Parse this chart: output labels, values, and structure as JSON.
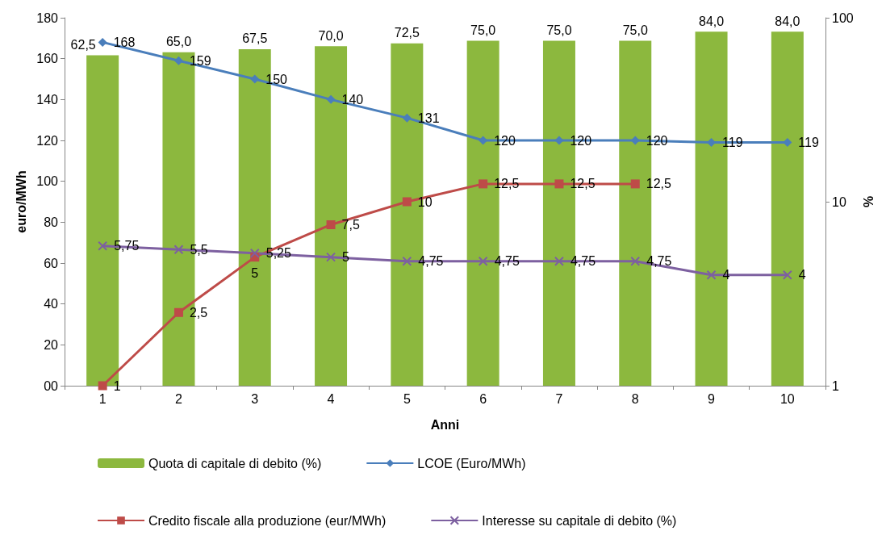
{
  "chart_data": {
    "type": "bar",
    "xlabel": "Anni",
    "ylabel": "euro/MWh",
    "y2label": "%",
    "categories": [
      "1",
      "2",
      "3",
      "4",
      "5",
      "6",
      "7",
      "8",
      "9",
      "10"
    ],
    "series": [
      {
        "name": "Quota di capitale di debito (%)",
        "axis": "y2",
        "color": "#8cb83e",
        "marker": "none",
        "values": [
          62.5,
          65.0,
          67.5,
          70.0,
          72.5,
          75.0,
          75.0,
          75.0,
          84.0,
          84.0
        ],
        "value_labels": [
          "62,5",
          "65,0",
          "67,5",
          "70,0",
          "72,5",
          "75,0",
          "75,0",
          "75,0",
          "84,0",
          "84,0"
        ]
      },
      {
        "name": "LCOE (Euro/MWh)",
        "type": "line",
        "color": "#4a7ebb",
        "marker": "diamond",
        "values": [
          168,
          159,
          150,
          140,
          131,
          120,
          120,
          120,
          119,
          119
        ],
        "value_labels": [
          "168",
          "159",
          "150",
          "140",
          "131",
          "120",
          "120",
          "120",
          "119",
          "119"
        ]
      },
      {
        "name": "Credito fiscale alla produzione (eur/MWh)",
        "type": "line",
        "axis": "y2",
        "color": "#be4b48",
        "marker": "square",
        "values": [
          1,
          2.5,
          5,
          7.5,
          10,
          12.5,
          12.5,
          12.5,
          null,
          null
        ],
        "value_labels": [
          "1",
          "2,5",
          "5",
          "7,5",
          "10",
          "12,5",
          "12,5",
          "12,5",
          null,
          null
        ]
      },
      {
        "name": "Interesse su capitale di debito (%)",
        "type": "line",
        "axis": "y2",
        "color": "#7d60a0",
        "marker": "cross",
        "values": [
          5.75,
          5.5,
          5.25,
          5,
          4.75,
          4.75,
          4.75,
          4.75,
          4,
          4
        ],
        "value_labels": [
          "5,75",
          "5,5",
          "5,25",
          "5",
          "4,75",
          "4,75",
          "4,75",
          "4,75",
          "4",
          "4"
        ]
      }
    ],
    "ylim": [
      0,
      180
    ],
    "yticks": [
      {
        "value": 0,
        "label": "00"
      },
      20,
      40,
      60,
      80,
      100,
      120,
      140,
      160,
      180
    ],
    "y2lim": [
      1,
      100
    ],
    "y2ticks": [
      1,
      10,
      100
    ],
    "log": "y2",
    "grid": false,
    "legend": "bottom"
  }
}
